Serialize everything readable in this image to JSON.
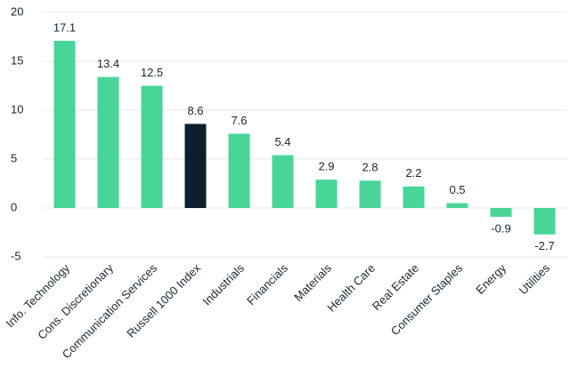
{
  "chart_data": {
    "type": "bar",
    "categories": [
      "Info. Technology",
      "Cons. Discretionary",
      "Communication Services",
      "Russell 1000 Index",
      "Industrials",
      "Financials",
      "Materials",
      "Health Care",
      "Real Estate",
      "Consumer Staples",
      "Energy",
      "Utilities"
    ],
    "values": [
      17.1,
      13.4,
      12.5,
      8.6,
      7.6,
      5.4,
      2.9,
      2.8,
      2.2,
      0.5,
      -0.9,
      -2.7
    ],
    "colors": [
      "#48d597",
      "#48d597",
      "#48d597",
      "#0d1f2d",
      "#48d597",
      "#48d597",
      "#48d597",
      "#48d597",
      "#48d597",
      "#48d597",
      "#48d597",
      "#48d597"
    ],
    "ylim": [
      -5,
      20
    ],
    "yticks": [
      -5,
      0,
      5,
      10,
      15,
      20
    ],
    "grid": true
  }
}
